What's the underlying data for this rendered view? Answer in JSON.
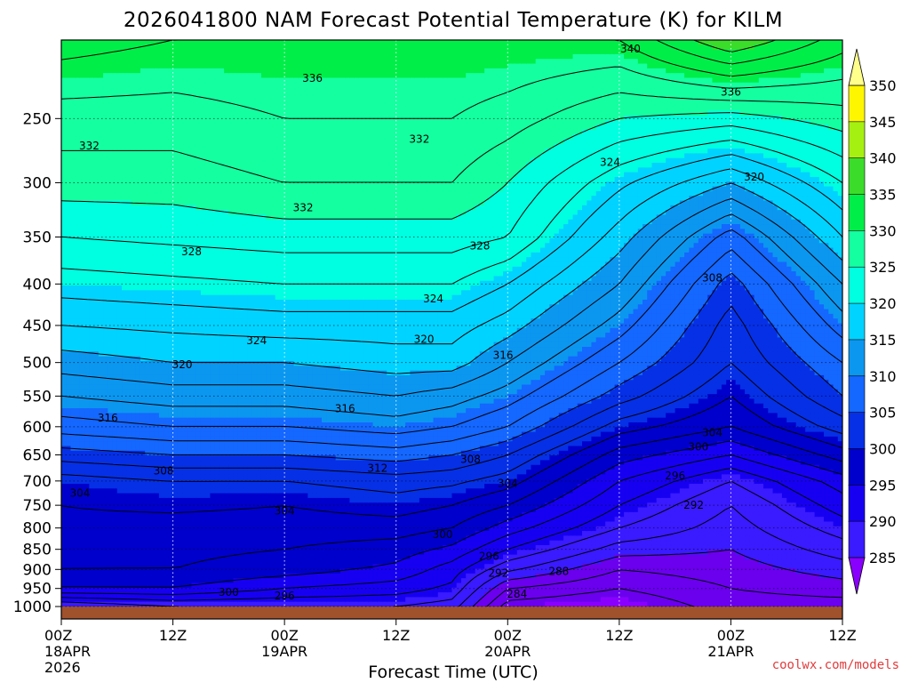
{
  "chart_data": {
    "type": "heatmap",
    "title": "2026041800 NAM Forecast Potential Temperature (K) for KILM",
    "xlabel": "Forecast Time (UTC)",
    "ylabel": "",
    "x_ticks": [
      {
        "hours": 0,
        "line1": "00Z",
        "line2": "18APR",
        "line3": "2026"
      },
      {
        "hours": 12,
        "line1": "12Z",
        "line2": "",
        "line3": ""
      },
      {
        "hours": 24,
        "line1": "00Z",
        "line2": "19APR",
        "line3": ""
      },
      {
        "hours": 36,
        "line1": "12Z",
        "line2": "",
        "line3": ""
      },
      {
        "hours": 48,
        "line1": "00Z",
        "line2": "20APR",
        "line3": ""
      },
      {
        "hours": 60,
        "line1": "12Z",
        "line2": "",
        "line3": ""
      },
      {
        "hours": 72,
        "line1": "00Z",
        "line2": "21APR",
        "line3": ""
      },
      {
        "hours": 84,
        "line1": "12Z",
        "line2": "",
        "line3": ""
      }
    ],
    "xlim_hours": [
      0,
      84
    ],
    "y_ticks": [
      "250",
      "300",
      "350",
      "400",
      "450",
      "500",
      "550",
      "600",
      "650",
      "700",
      "750",
      "800",
      "850",
      "900",
      "950",
      "1000"
    ],
    "ylim": [
      1000,
      200
    ],
    "y_scale": "log",
    "grid": "dotted",
    "colorbar": {
      "labels": [
        "350",
        "345",
        "340",
        "335",
        "330",
        "325",
        "320",
        "315",
        "310",
        "305",
        "300",
        "295",
        "290",
        "285"
      ],
      "levels": [
        280,
        285,
        290,
        295,
        300,
        305,
        310,
        315,
        320,
        325,
        330,
        335,
        340,
        345,
        350,
        355
      ],
      "colors": [
        "#8a00ff",
        "#6a00ee",
        "#3a1aff",
        "#1700f2",
        "#0000cc",
        "#0630e6",
        "#1467ff",
        "#0b97f0",
        "#00d3ff",
        "#00ffe0",
        "#14ffa0",
        "#00ee48",
        "#3bdd2a",
        "#a6f011",
        "#fdf600",
        "#ffff8c"
      ]
    },
    "profiles": [
      {
        "hours": 0,
        "theta": {
          "1000": 292,
          "950": 300,
          "900": 302,
          "850": 303,
          "800": 303.5,
          "750": 304,
          "700": 305,
          "650": 309,
          "600": 313,
          "550": 316,
          "500": 319,
          "450": 322,
          "400": 325,
          "350": 328,
          "300": 331,
          "250": 333,
          "200": 337
        }
      },
      {
        "hours": 12,
        "theta": {
          "1000": 294,
          "950": 300,
          "900": 302,
          "850": 302.5,
          "800": 303,
          "750": 304.5,
          "700": 306,
          "650": 310,
          "600": 314,
          "550": 317,
          "500": 320,
          "450": 322.5,
          "400": 325.5,
          "350": 328.5,
          "300": 331,
          "250": 333,
          "200": 336
        }
      },
      {
        "hours": 24,
        "theta": {
          "1000": 294,
          "950": 298,
          "900": 301,
          "850": 302,
          "800": 303,
          "750": 304,
          "700": 306,
          "650": 310,
          "600": 314,
          "550": 317,
          "500": 320,
          "450": 323,
          "400": 326,
          "350": 329,
          "300": 332,
          "250": 334,
          "200": 336
        }
      },
      {
        "hours": 36,
        "theta": {
          "1000": 294,
          "950": 297,
          "900": 299.5,
          "850": 301,
          "800": 303,
          "750": 305,
          "700": 307,
          "650": 311,
          "600": 315,
          "550": 318,
          "500": 321,
          "450": 323,
          "400": 326,
          "350": 329,
          "300": 332,
          "250": 334,
          "200": 336
        }
      },
      {
        "hours": 42,
        "theta": {
          "1000": 293,
          "950": 295.5,
          "900": 297,
          "850": 299.5,
          "800": 302,
          "750": 304,
          "700": 306.5,
          "650": 310,
          "600": 314,
          "550": 317,
          "500": 321,
          "450": 323,
          "400": 326,
          "350": 329,
          "300": 332,
          "250": 334,
          "200": 336
        }
      },
      {
        "hours": 48,
        "theta": {
          "1000": 285,
          "950": 288,
          "900": 292.5,
          "850": 296,
          "800": 299,
          "750": 302,
          "700": 305,
          "650": 308,
          "600": 312,
          "550": 315,
          "500": 318,
          "450": 321,
          "400": 324,
          "350": 328,
          "300": 330,
          "250": 333,
          "200": 336
        }
      },
      {
        "hours": 60,
        "theta": {
          "1000": 284,
          "950": 286,
          "900": 288,
          "850": 291,
          "800": 294,
          "750": 296,
          "700": 298,
          "650": 301,
          "600": 305,
          "550": 309,
          "500": 312,
          "450": 315,
          "400": 318,
          "350": 321,
          "300": 324.5,
          "250": 330,
          "200": 336
        }
      },
      {
        "hours": 72,
        "theta": {
          "1000": 287,
          "950": 288,
          "900": 289,
          "850": 290,
          "800": 291,
          "750": 292,
          "700": 294,
          "650": 298,
          "600": 302,
          "550": 304,
          "500": 306,
          "450": 307,
          "400": 309,
          "350": 313,
          "300": 320,
          "250": 329,
          "200": 342
        }
      },
      {
        "hours": 84,
        "theta": {
          "1000": 287,
          "950": 289,
          "900": 291,
          "850": 293,
          "800": 295,
          "750": 297,
          "700": 299,
          "650": 303,
          "600": 307,
          "550": 310,
          "500": 312,
          "450": 315,
          "400": 318,
          "350": 322,
          "300": 326,
          "250": 331,
          "200": 337
        }
      }
    ],
    "contour_labels": [
      {
        "text": "340",
        "hours": 61.2,
        "p": 205
      },
      {
        "text": "336",
        "hours": 27.0,
        "p": 223
      },
      {
        "text": "336",
        "hours": 72.0,
        "p": 232
      },
      {
        "text": "332",
        "hours": 3.0,
        "p": 270
      },
      {
        "text": "332",
        "hours": 38.5,
        "p": 265
      },
      {
        "text": "332",
        "hours": 26.0,
        "p": 322
      },
      {
        "text": "324",
        "hours": 59.0,
        "p": 283
      },
      {
        "text": "320",
        "hours": 74.5,
        "p": 295
      },
      {
        "text": "328",
        "hours": 14.0,
        "p": 365
      },
      {
        "text": "328",
        "hours": 45.0,
        "p": 359
      },
      {
        "text": "324",
        "hours": 40.0,
        "p": 417
      },
      {
        "text": "324",
        "hours": 21.0,
        "p": 470
      },
      {
        "text": "320",
        "hours": 39.0,
        "p": 468
      },
      {
        "text": "320",
        "hours": 13.0,
        "p": 503
      },
      {
        "text": "316",
        "hours": 47.5,
        "p": 490
      },
      {
        "text": "308",
        "hours": 70.0,
        "p": 393
      },
      {
        "text": "316",
        "hours": 5.0,
        "p": 585
      },
      {
        "text": "316",
        "hours": 30.5,
        "p": 570
      },
      {
        "text": "304",
        "hours": 70.0,
        "p": 610
      },
      {
        "text": "308",
        "hours": 44.0,
        "p": 658
      },
      {
        "text": "300",
        "hours": 68.5,
        "p": 635
      },
      {
        "text": "308",
        "hours": 11.0,
        "p": 680
      },
      {
        "text": "312",
        "hours": 34.0,
        "p": 675
      },
      {
        "text": "296",
        "hours": 66.0,
        "p": 690
      },
      {
        "text": "304",
        "hours": 48.0,
        "p": 705
      },
      {
        "text": "304",
        "hours": 2.0,
        "p": 725
      },
      {
        "text": "292",
        "hours": 68.0,
        "p": 750
      },
      {
        "text": "304",
        "hours": 24.0,
        "p": 762
      },
      {
        "text": "300",
        "hours": 41.0,
        "p": 815
      },
      {
        "text": "296",
        "hours": 46.0,
        "p": 867
      },
      {
        "text": "292",
        "hours": 47.0,
        "p": 910
      },
      {
        "text": "288",
        "hours": 53.5,
        "p": 905
      },
      {
        "text": "300",
        "hours": 18.0,
        "p": 960
      },
      {
        "text": "296",
        "hours": 24.0,
        "p": 970
      },
      {
        "text": "284",
        "hours": 49.0,
        "p": 965
      }
    ]
  },
  "credit": "coolwx.com/models"
}
